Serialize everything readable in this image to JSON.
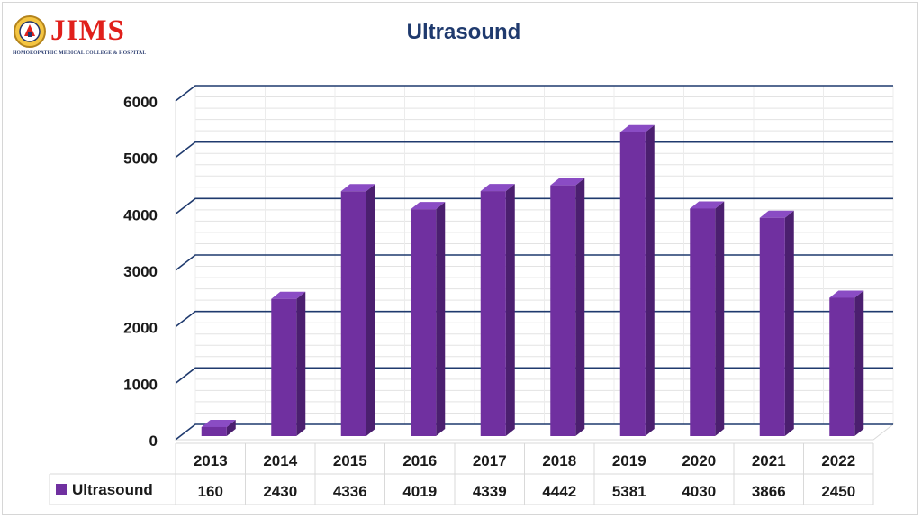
{
  "logo": {
    "name": "JIMS",
    "subtitle": "HOMOEOPATHIC MEDICAL COLLEGE & HOSPITAL"
  },
  "colors": {
    "bar_front": "#7030a0",
    "bar_side": "#4b1f6f",
    "bar_top": "#8a4cc4",
    "gridline": "#1f3a6e",
    "title": "#1f3a6e",
    "logo_red": "#e0201b"
  },
  "chart_data": {
    "type": "bar",
    "title": "Ultrasound",
    "categories": [
      "2013",
      "2014",
      "2015",
      "2016",
      "2017",
      "2018",
      "2019",
      "2020",
      "2021",
      "2022"
    ],
    "series": [
      {
        "name": "Ultrasound",
        "values": [
          160,
          2430,
          4336,
          4019,
          4339,
          4442,
          5381,
          4030,
          3866,
          2450
        ]
      }
    ],
    "ylim": [
      0,
      6000
    ],
    "yticks": [
      0,
      1000,
      2000,
      3000,
      4000,
      5000,
      6000
    ],
    "xlabel": "",
    "ylabel": "",
    "grid": true,
    "legend": "data-table",
    "data_table": true
  }
}
